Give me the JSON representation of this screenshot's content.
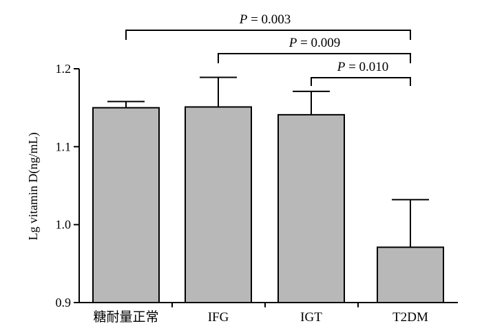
{
  "chart_data": {
    "type": "bar",
    "title": "",
    "xlabel": "",
    "ylabel": "Lg vitamin D(ng/mL)",
    "categories": [
      "糖耐量正常",
      "IFG",
      "IGT",
      "T2DM"
    ],
    "values": [
      1.15,
      1.151,
      1.141,
      0.971
    ],
    "error_plus": [
      0.008,
      0.038,
      0.03,
      0.061
    ],
    "ylim": [
      0.9,
      1.2
    ],
    "yticks": [
      "0.9",
      "1.0",
      "1.1",
      "1.2"
    ],
    "bar_color": "#b8b8b8",
    "grid": false,
    "legend": "none",
    "comparisons": [
      {
        "from": 0,
        "to": 3,
        "label_italic": "P",
        "label_rest": " = 0.003"
      },
      {
        "from": 1,
        "to": 3,
        "label_italic": "P",
        "label_rest": " = 0.009"
      },
      {
        "from": 2,
        "to": 3,
        "label_italic": "P",
        "label_rest": " = 0.010"
      }
    ]
  }
}
